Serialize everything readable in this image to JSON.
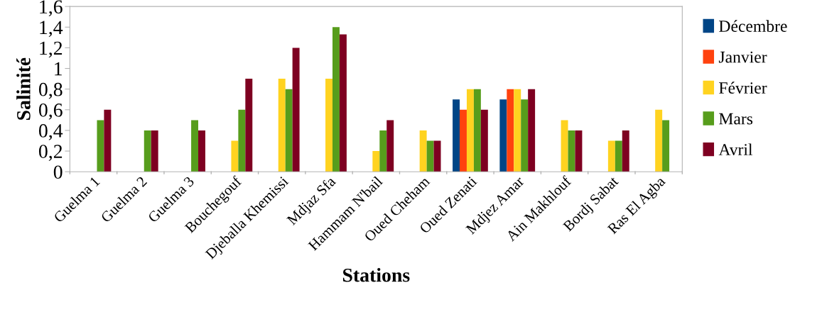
{
  "chart_data": {
    "type": "bar",
    "xlabel": "Stations",
    "ylabel": "Salinité",
    "categories": [
      "Guelma 1",
      "Guelma 2",
      "Guelma 3",
      "Bouchegouf",
      "Djeballa Khemissi",
      "Mdjaz Sfa",
      "Hammam N'bail",
      "Oued Cheham",
      "Oued Zenati",
      "Mdjez Amar",
      "Ain Makhlouf",
      "Bordj Sabat",
      "Ras El Agba"
    ],
    "series": [
      {
        "name": "Décembre",
        "color": "#004586",
        "values": [
          null,
          null,
          null,
          null,
          null,
          null,
          null,
          null,
          0.7,
          0.7,
          null,
          null,
          null
        ]
      },
      {
        "name": "Janvier",
        "color": "#ff420e",
        "values": [
          null,
          null,
          null,
          null,
          null,
          null,
          null,
          null,
          0.6,
          0.8,
          null,
          null,
          null
        ]
      },
      {
        "name": "Février",
        "color": "#ffd320",
        "values": [
          null,
          null,
          null,
          0.3,
          0.9,
          0.9,
          0.2,
          0.4,
          0.8,
          0.8,
          0.5,
          0.3,
          0.6
        ]
      },
      {
        "name": "Mars",
        "color": "#579d1c",
        "values": [
          0.5,
          0.4,
          0.5,
          0.6,
          0.8,
          1.4,
          0.4,
          0.3,
          0.8,
          0.7,
          0.4,
          0.3,
          0.5
        ]
      },
      {
        "name": "Avril",
        "color": "#7e0021",
        "values": [
          0.6,
          0.4,
          0.4,
          0.9,
          1.2,
          1.33,
          0.5,
          0.3,
          0.6,
          0.8,
          0.4,
          0.4,
          null
        ]
      }
    ],
    "ylim": [
      0,
      1.6
    ],
    "yticks": [
      {
        "value": 0,
        "label": "0"
      },
      {
        "value": 0.2,
        "label": "0,2"
      },
      {
        "value": 0.4,
        "label": "0,4"
      },
      {
        "value": 0.6,
        "label": "0,6"
      },
      {
        "value": 0.8,
        "label": "0,8"
      },
      {
        "value": 1,
        "label": "1"
      },
      {
        "value": 1.2,
        "label": "1,2"
      },
      {
        "value": 1.4,
        "label": "1,4"
      },
      {
        "value": 1.6,
        "label": "1,6"
      }
    ],
    "grid": false,
    "legend": "right"
  }
}
